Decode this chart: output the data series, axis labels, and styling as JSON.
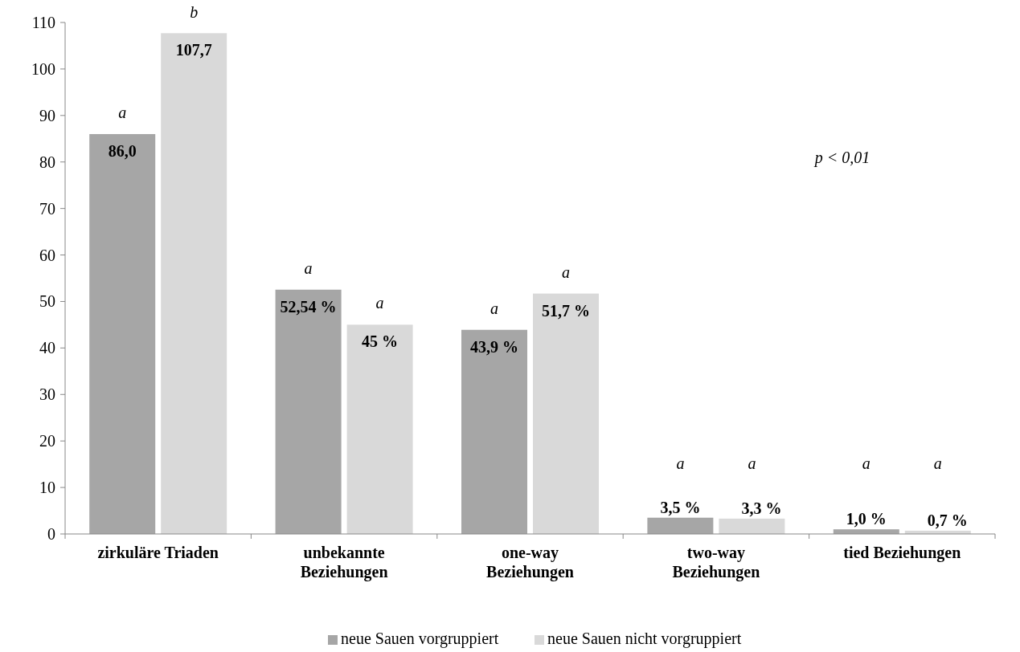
{
  "chart_data": {
    "type": "bar",
    "categories": [
      "zirkuläre Triaden",
      "unbekannte\nBeziehungen",
      "one-way\nBeziehungen",
      "two-way\nBeziehungen",
      "tied Beziehungen"
    ],
    "series": [
      {
        "name": "neue Sauen vorgruppiert",
        "color": "#a6a6a6",
        "values": [
          86.0,
          52.54,
          43.9,
          3.5,
          1.0
        ],
        "value_labels": [
          "86,0",
          "52,54 %",
          "43,9 %",
          "3,5 %",
          "1,0 %"
        ]
      },
      {
        "name": "neue Sauen nicht vorgruppiert",
        "color": "#d9d9d9",
        "values": [
          107.7,
          45,
          51.7,
          3.3,
          0.7
        ],
        "value_labels": [
          "107,7",
          "45 %",
          "51,7 %",
          "3,3 %",
          "0,7 %"
        ]
      }
    ],
    "ylim": [
      0,
      110
    ],
    "yticks": [
      0,
      10,
      20,
      30,
      40,
      50,
      60,
      70,
      80,
      90,
      100,
      110
    ],
    "grid": false,
    "legend": "bottom",
    "annotations": [
      "a",
      "b",
      "a",
      "a",
      "a",
      "a",
      "a",
      "a",
      "a",
      "a",
      "p < 0,01"
    ]
  }
}
